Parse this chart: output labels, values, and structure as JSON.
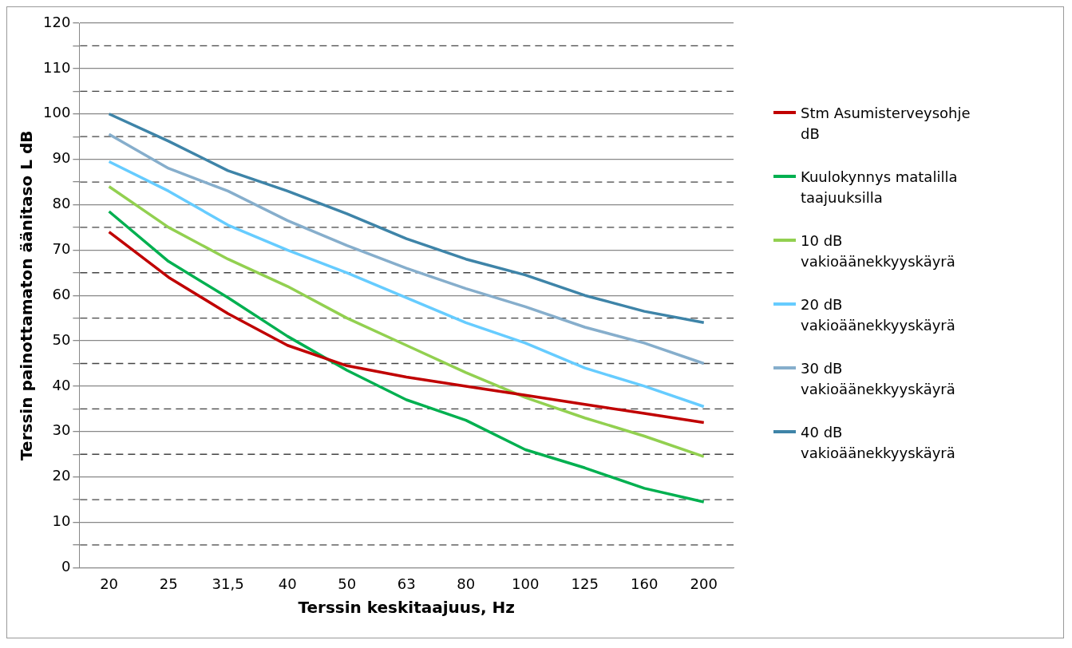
{
  "chart_data": {
    "type": "line",
    "xlabel": "Terssin keskitaajuus, Hz",
    "ylabel": "Terssin painottamaton äänitaso L dB",
    "categories": [
      "20",
      "25",
      "31,5",
      "40",
      "50",
      "63",
      "80",
      "100",
      "125",
      "160",
      "200"
    ],
    "ylim": [
      0,
      120
    ],
    "yticks": [
      0,
      {
        "value": 5,
        "label": null
      },
      10,
      {
        "value": 15,
        "label": null
      },
      20,
      {
        "value": 25,
        "label": null
      },
      30,
      {
        "value": 35,
        "label": null
      },
      40,
      {
        "value": 45,
        "label": null
      },
      50,
      {
        "value": 55,
        "label": null
      },
      60,
      {
        "value": 65,
        "label": null
      },
      70,
      {
        "value": 75,
        "label": null
      },
      80,
      {
        "value": 85,
        "label": null
      },
      90,
      {
        "value": 95,
        "label": null
      },
      100,
      {
        "value": 105,
        "label": null
      },
      110,
      {
        "value": 115,
        "label": null
      },
      120
    ],
    "grid": "y",
    "legend": "right",
    "marker": "none",
    "line_style": "solid",
    "series": [
      {
        "name": "Stm Asumisterveysohje dB",
        "color": "#c00000",
        "values": [
          74,
          64,
          56,
          49,
          44.5,
          42,
          40,
          38,
          36,
          34,
          32
        ]
      },
      {
        "name": "Kuulokynnys matalilla taajuuksilla",
        "color": "#00b050",
        "values": [
          78.5,
          67.5,
          59.5,
          51,
          43.5,
          37,
          32.5,
          26,
          22,
          17.5,
          14.5
        ]
      },
      {
        "name": "10 dB vakioäänekkyyskäyrä",
        "color": "#92d050",
        "values": [
          84,
          75,
          68,
          62,
          55,
          49,
          43,
          37.5,
          33,
          29,
          24.5
        ]
      },
      {
        "name": "20 dB vakioäänekkyyskäyrä",
        "color": "#66ccff",
        "values": [
          89.5,
          83,
          75.5,
          70,
          65,
          59.5,
          54,
          49.5,
          44,
          40,
          35.5
        ]
      },
      {
        "name": "30 dB vakioäänekkyyskäyrä",
        "color": "#86aecc",
        "values": [
          95.5,
          88,
          83,
          76.5,
          71,
          66,
          61.5,
          57.5,
          53,
          49.5,
          45
        ]
      },
      {
        "name": "40 dB vakioäänekkyyskäyrä",
        "color": "#3e84a8",
        "values": [
          100,
          94,
          87.5,
          83,
          78,
          72.5,
          68,
          64.5,
          60,
          56.5,
          54
        ]
      }
    ]
  }
}
